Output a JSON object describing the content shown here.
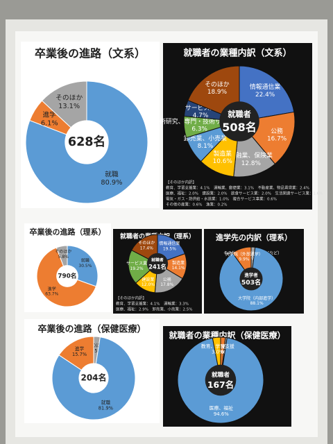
{
  "chart_data": [
    {
      "type": "donut",
      "title": "卒業後の進路（文系）",
      "center_text": [
        "628名"
      ],
      "theme": "light",
      "categories": [
        "就職",
        "進学",
        "そのほか"
      ],
      "values": [
        80.9,
        6.1,
        13.1
      ],
      "value_labels": [
        "80.9%",
        "6.1%",
        "13.1%"
      ],
      "colors": [
        "#5b9bd5",
        "#ed7d31",
        "#a5a5a5"
      ]
    },
    {
      "type": "donut",
      "title": "就職者の業種内訳（文系）",
      "center_text": [
        "就職者",
        "508名"
      ],
      "theme": "dark",
      "categories": [
        "情報通信業",
        "公務",
        "金融業、保険業",
        "製造業",
        "卸売業、小売業",
        "学術研究、専門・技術サービス業",
        "サービス業",
        "そのほか"
      ],
      "values": [
        22.4,
        16.7,
        12.8,
        10.6,
        8.1,
        6.3,
        4.7,
        18.9
      ],
      "value_labels": [
        "22.4%",
        "16.7%",
        "12.8%",
        "10.6%",
        "8.1%",
        "6.3%",
        "4.7%",
        "18.9%"
      ],
      "colors": [
        "#4472c4",
        "#ed7d31",
        "#a5a5a5",
        "#ffc000",
        "#5b9bd5",
        "#70ad47",
        "#264478",
        "#9e480e"
      ],
      "notes": [
        "【そのほか内訳】",
        "教育、学習支援業：4.1%　運輸業、郵便業：3.1%　不動産業、物品賃貸業：2.4%",
        "医療、福祉：2.0%　建設業：2.0%　飲食サービス業：2.0%　生活関連サービス業：1.6%",
        "電気・ガス・熱供給・水道業：1.0%　複合サービス事業：0.6%",
        "その他の産業：0.6%　漁業：0.2%"
      ]
    },
    {
      "type": "donut",
      "title": "卒業後の進路（理系）",
      "center_text": [
        "790名"
      ],
      "theme": "light",
      "categories": [
        "就職",
        "進学",
        "そのほか"
      ],
      "values": [
        30.5,
        63.7,
        5.8
      ],
      "value_labels": [
        "30.5%",
        "63.7%",
        "5.8%"
      ],
      "colors": [
        "#5b9bd5",
        "#ed7d31",
        "#a5a5a5"
      ]
    },
    {
      "type": "donut",
      "title": "就職者の業種内訳（理系）",
      "center_text": [
        "就職者",
        "241名"
      ],
      "theme": "dark",
      "categories": [
        "情報通信業",
        "製造業",
        "公務",
        "建設業",
        "サービス業",
        "そのほか"
      ],
      "values": [
        19.5,
        14.1,
        17.8,
        12.0,
        19.2,
        17.4
      ],
      "value_labels": [
        "19.5%",
        "14.1%",
        "17.8%",
        "12.0%",
        "19.2%",
        "17.4%"
      ],
      "colors": [
        "#4472c4",
        "#ed7d31",
        "#a5a5a5",
        "#ffc000",
        "#70ad47",
        "#9e480e"
      ],
      "notes": [
        "【そのほか内訳】",
        "教育、学習支援業：4.1%　運輸業：3.3%",
        "医療、福祉：2.9%　卸売業、小売業：2.5%"
      ]
    },
    {
      "type": "donut",
      "title": "進学先の内訳（理系）",
      "center_text": [
        "進学者",
        "503名"
      ],
      "theme": "dark",
      "categories": [
        "その他（専修学校・不明など）",
        "大学院（内部進学）",
        "大学院（外部進学）"
      ],
      "values": [
        2.0,
        88.1,
        9.9
      ],
      "value_labels": [
        "2.0%",
        "88.1%",
        "9.9%"
      ],
      "colors": [
        "#a5a5a5",
        "#5b9bd5",
        "#ed7d31"
      ]
    },
    {
      "type": "donut",
      "title": "卒業後の進路（保健医療）",
      "center_text": [
        "204名"
      ],
      "theme": "light",
      "categories": [
        "そのほか",
        "就職",
        "進学"
      ],
      "values": [
        2.5,
        81.9,
        15.7
      ],
      "value_labels": [
        "2.5%",
        "81.9%",
        "15.7%"
      ],
      "colors": [
        "#a5a5a5",
        "#5b9bd5",
        "#ed7d31"
      ]
    },
    {
      "type": "donut",
      "title": "就職者の業種内訳（保健医療）",
      "center_text": [
        "就職者",
        "167名"
      ],
      "theme": "dark",
      "categories": [
        "公務",
        "建設業",
        "医療、福祉",
        "教育、学習支援"
      ],
      "values": [
        1.8,
        0.6,
        94.6,
        3.0
      ],
      "value_labels": [
        "1.8%",
        "0.6%",
        "94.6%",
        "3.0%"
      ],
      "colors": [
        "#ed7d31",
        "#a5a5a5",
        "#5b9bd5",
        "#ffc000"
      ]
    }
  ]
}
